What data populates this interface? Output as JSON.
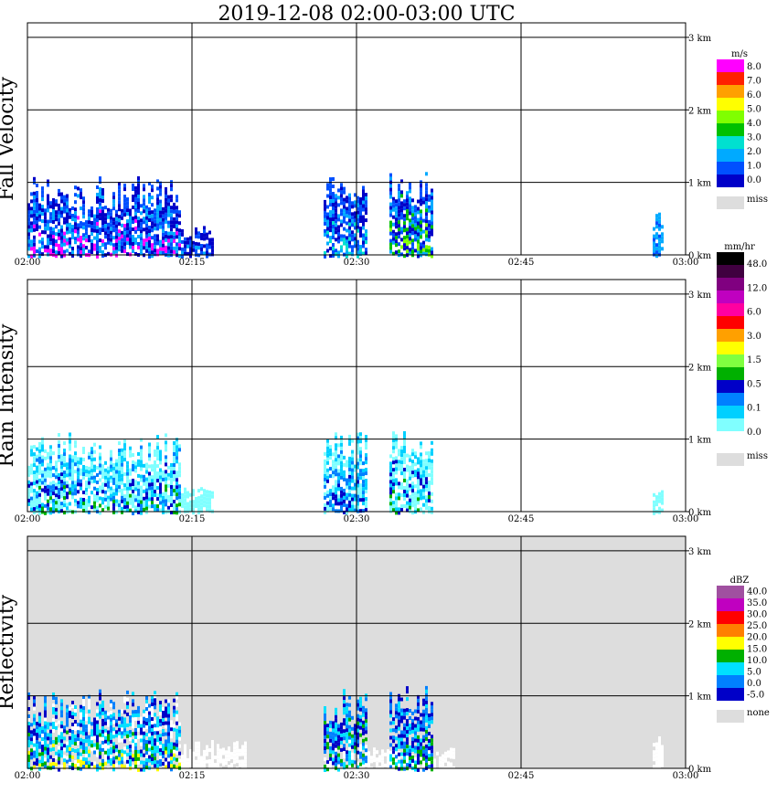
{
  "title": "2019-12-08   02:00-03:00 UTC",
  "chart_data": [
    {
      "type": "heatmap",
      "ylabel": "Fall Velocity",
      "x_ticks": [
        "02:00",
        "02:15",
        "02:30",
        "02:45",
        "03:00"
      ],
      "y_ticks": [
        "0 km",
        "1 km",
        "2 km",
        "3 km"
      ],
      "ylim_km": [
        0,
        3.2
      ],
      "background": "#ffffff",
      "colorbar": {
        "unit": "m/s",
        "colors": [
          "#0000c8",
          "#0050ff",
          "#00aaff",
          "#00e0d0",
          "#00c000",
          "#80ff00",
          "#ffff00",
          "#ffa000",
          "#ff2000",
          "#ff00ff"
        ],
        "labels": [
          "0.0",
          "1.0",
          "2.0",
          "3.0",
          "4.0",
          "5.0",
          "6.0",
          "7.0",
          "8.0"
        ],
        "miss_label": "miss",
        "miss_color": "#dddddd"
      },
      "echo_regions": [
        {
          "t_start": "02:00",
          "t_end": "02:14",
          "top_km": 1.1,
          "colors": [
            "#0000c8",
            "#0050ff",
            "#00aaff",
            "#ff00ff"
          ]
        },
        {
          "t_start": "02:14",
          "t_end": "02:17",
          "top_km": 0.4,
          "colors": [
            "#0000c8",
            "#0050ff",
            "#00aaff"
          ]
        },
        {
          "t_start": "02:27",
          "t_end": "02:31",
          "top_km": 1.1,
          "colors": [
            "#0000c8",
            "#0050ff",
            "#00aaff",
            "#00e0d0"
          ]
        },
        {
          "t_start": "02:33",
          "t_end": "02:37",
          "top_km": 1.15,
          "colors": [
            "#0000c8",
            "#0050ff",
            "#00aaff",
            "#00c000",
            "#80ff00"
          ]
        },
        {
          "t_start": "02:57",
          "t_end": "02:58",
          "top_km": 0.6,
          "colors": [
            "#00aaff",
            "#0050ff"
          ]
        }
      ]
    },
    {
      "type": "heatmap",
      "ylabel": "Rain Intensity",
      "x_ticks": [
        "02:00",
        "02:15",
        "02:30",
        "02:45",
        "03:00"
      ],
      "y_ticks": [
        "0 km",
        "1 km",
        "2 km",
        "3 km"
      ],
      "ylim_km": [
        0,
        3.2
      ],
      "background": "#ffffff",
      "colorbar": {
        "unit": "mm/hr",
        "colors": [
          "#ffffff",
          "#80ffff",
          "#00d0ff",
          "#0080ff",
          "#0000c8",
          "#00b000",
          "#80ff40",
          "#ffff00",
          "#ffa000",
          "#ff0000",
          "#ff00a0",
          "#c000c0",
          "#800080",
          "#400040",
          "#000000"
        ],
        "labels": [
          "0.0",
          "0.1",
          "0.5",
          "1.5",
          "3.0",
          "6.0",
          "12.0",
          "48.0"
        ],
        "miss_label": "miss",
        "miss_color": "#dddddd"
      },
      "echo_regions": [
        {
          "t_start": "02:00",
          "t_end": "02:14",
          "top_km": 1.1,
          "colors": [
            "#80ffff",
            "#80ffff",
            "#00d0ff",
            "#0080ff",
            "#0000c8",
            "#00b000"
          ]
        },
        {
          "t_start": "02:14",
          "t_end": "02:17",
          "top_km": 0.4,
          "colors": [
            "#80ffff"
          ]
        },
        {
          "t_start": "02:27",
          "t_end": "02:31",
          "top_km": 1.1,
          "colors": [
            "#80ffff",
            "#00d0ff",
            "#0080ff",
            "#0000c8"
          ]
        },
        {
          "t_start": "02:33",
          "t_end": "02:37",
          "top_km": 1.15,
          "colors": [
            "#80ffff",
            "#80ffff",
            "#00d0ff",
            "#0000c8",
            "#00b000"
          ]
        },
        {
          "t_start": "02:57",
          "t_end": "02:58",
          "top_km": 0.4,
          "colors": [
            "#80ffff"
          ]
        }
      ]
    },
    {
      "type": "heatmap",
      "ylabel": "Reflectivity",
      "x_ticks": [
        "02:00",
        "02:15",
        "02:30",
        "02:45",
        "03:00"
      ],
      "y_ticks": [
        "0 km",
        "1 km",
        "2 km",
        "3 km"
      ],
      "ylim_km": [
        0,
        3.2
      ],
      "background": "#dddddd",
      "colorbar": {
        "unit": "dBZ",
        "colors": [
          "#0000c8",
          "#0080ff",
          "#00e0ff",
          "#00b000",
          "#ffff00",
          "#ff8000",
          "#ff0000",
          "#c000c0",
          "#a050a0"
        ],
        "labels": [
          "-5.0",
          "0.0",
          "5.0",
          "10.0",
          "15.0",
          "20.0",
          "25.0",
          "30.0",
          "35.0",
          "40.0"
        ],
        "miss_label": "none",
        "miss_color": "#dddddd"
      },
      "echo_regions": [
        {
          "t_start": "02:00",
          "t_end": "02:14",
          "top_km": 1.1,
          "colors": [
            "#ffffff",
            "#0000c8",
            "#0080ff",
            "#00e0ff",
            "#00e0ff",
            "#00b000",
            "#ffff00"
          ]
        },
        {
          "t_start": "02:14",
          "t_end": "02:20",
          "top_km": 0.4,
          "colors": [
            "#ffffff"
          ]
        },
        {
          "t_start": "02:27",
          "t_end": "02:31",
          "top_km": 1.1,
          "colors": [
            "#0000c8",
            "#0080ff",
            "#00e0ff",
            "#00b000",
            "#ffffff"
          ]
        },
        {
          "t_start": "02:31",
          "t_end": "02:39",
          "top_km": 0.3,
          "colors": [
            "#ffffff"
          ]
        },
        {
          "t_start": "02:33",
          "t_end": "02:37",
          "top_km": 1.15,
          "colors": [
            "#0000c8",
            "#0080ff",
            "#00e0ff",
            "#00b000"
          ]
        },
        {
          "t_start": "02:57",
          "t_end": "02:58",
          "top_km": 0.5,
          "colors": [
            "#ffffff"
          ]
        }
      ]
    }
  ]
}
